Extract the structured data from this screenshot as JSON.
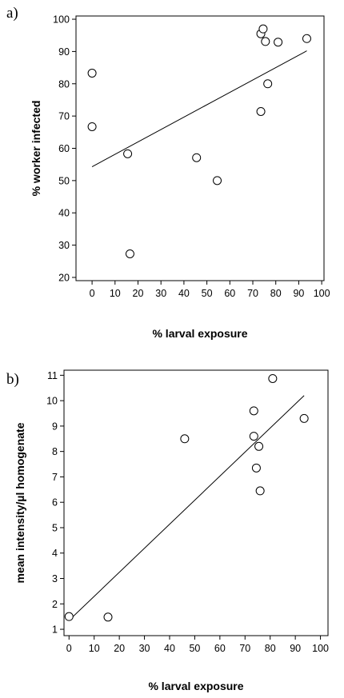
{
  "chart_data": [
    {
      "type": "scatter",
      "panel_label": "a)",
      "xlabel": "% larval exposure",
      "ylabel": "% worker infected",
      "xlim": [
        -7,
        101
      ],
      "ylim": [
        19,
        101
      ],
      "xticks": [
        0,
        10,
        20,
        30,
        40,
        50,
        60,
        70,
        80,
        90,
        100
      ],
      "yticks": [
        20,
        30,
        40,
        50,
        60,
        70,
        80,
        90,
        100
      ],
      "points": [
        {
          "x": 0,
          "y": 83.3
        },
        {
          "x": 0,
          "y": 66.7
        },
        {
          "x": 15.5,
          "y": 58.3
        },
        {
          "x": 16.5,
          "y": 27.3
        },
        {
          "x": 45.5,
          "y": 57.1
        },
        {
          "x": 54.5,
          "y": 50.0
        },
        {
          "x": 73.5,
          "y": 95.5
        },
        {
          "x": 74.5,
          "y": 97.0
        },
        {
          "x": 75.5,
          "y": 93.1
        },
        {
          "x": 76.5,
          "y": 80.0
        },
        {
          "x": 73.5,
          "y": 71.4
        },
        {
          "x": 81.0,
          "y": 92.9
        },
        {
          "x": 93.5,
          "y": 94.0
        }
      ],
      "fit_line": {
        "x": [
          0,
          93.5
        ],
        "y": [
          54.3,
          90.2
        ]
      },
      "grid": false,
      "legend": "none"
    },
    {
      "type": "scatter",
      "panel_label": "b)",
      "xlabel": "% larval exposure",
      "ylabel": "mean intensity/µl homogenate",
      "xlim": [
        -2,
        103
      ],
      "ylim": [
        0.75,
        11.2
      ],
      "xticks": [
        0,
        10,
        20,
        30,
        40,
        50,
        60,
        70,
        80,
        90,
        100
      ],
      "yticks": [
        1,
        2,
        3,
        4,
        5,
        6,
        7,
        8,
        9,
        10,
        11
      ],
      "points": [
        {
          "x": 0,
          "y": 1.5
        },
        {
          "x": 15.5,
          "y": 1.48
        },
        {
          "x": 46.0,
          "y": 8.5
        },
        {
          "x": 73.5,
          "y": 9.6
        },
        {
          "x": 73.5,
          "y": 8.6
        },
        {
          "x": 75.5,
          "y": 8.2
        },
        {
          "x": 74.5,
          "y": 7.35
        },
        {
          "x": 76.0,
          "y": 6.45
        },
        {
          "x": 81.0,
          "y": 10.87
        },
        {
          "x": 93.5,
          "y": 9.3
        }
      ],
      "fit_line": {
        "x": [
          0,
          93.5
        ],
        "y": [
          1.35,
          10.2
        ]
      },
      "grid": false,
      "legend": "none"
    }
  ]
}
